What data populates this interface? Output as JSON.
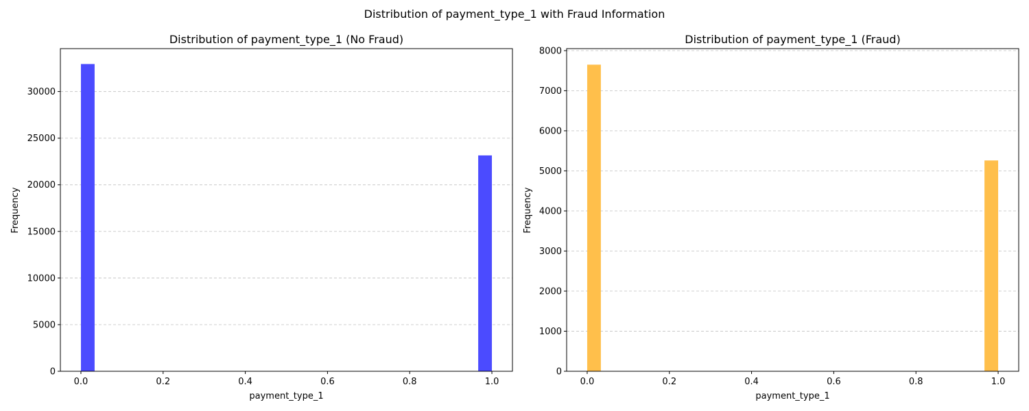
{
  "figure": {
    "suptitle": "Distribution of payment_type_1 with Fraud Information"
  },
  "chart_data": [
    {
      "type": "bar",
      "title": "Distribution of payment_type_1 (No Fraud)",
      "xlabel": "payment_type_1",
      "ylabel": "Frequency",
      "bar_color": "#4b4bff",
      "xlim": [
        -0.05,
        1.05
      ],
      "ylim": [
        0,
        34600
      ],
      "xticks": [
        0.0,
        0.2,
        0.4,
        0.6,
        0.8,
        1.0
      ],
      "xtick_labels": [
        "0.0",
        "0.2",
        "0.4",
        "0.6",
        "0.8",
        "1.0"
      ],
      "yticks": [
        0,
        5000,
        10000,
        15000,
        20000,
        25000,
        30000
      ],
      "ytick_labels": [
        "0",
        "5000",
        "10000",
        "15000",
        "20000",
        "25000",
        "30000"
      ],
      "grid": "y-dashed",
      "bars": [
        {
          "x0": 0.0,
          "x1": 0.0333,
          "value": 32950
        },
        {
          "x0": 0.9667,
          "x1": 1.0,
          "value": 23150
        }
      ]
    },
    {
      "type": "bar",
      "title": "Distribution of payment_type_1 (Fraud)",
      "xlabel": "payment_type_1",
      "ylabel": "Frequency",
      "bar_color": "#ffbf4b",
      "xlim": [
        -0.05,
        1.05
      ],
      "ylim": [
        0,
        8050
      ],
      "xticks": [
        0.0,
        0.2,
        0.4,
        0.6,
        0.8,
        1.0
      ],
      "xtick_labels": [
        "0.0",
        "0.2",
        "0.4",
        "0.6",
        "0.8",
        "1.0"
      ],
      "yticks": [
        0,
        1000,
        2000,
        3000,
        4000,
        5000,
        6000,
        7000,
        8000
      ],
      "ytick_labels": [
        "0",
        "1000",
        "2000",
        "3000",
        "4000",
        "5000",
        "6000",
        "7000",
        "8000"
      ],
      "grid": "y-dashed",
      "bars": [
        {
          "x0": 0.0,
          "x1": 0.0333,
          "value": 7650
        },
        {
          "x0": 0.9667,
          "x1": 1.0,
          "value": 5260
        }
      ]
    }
  ]
}
